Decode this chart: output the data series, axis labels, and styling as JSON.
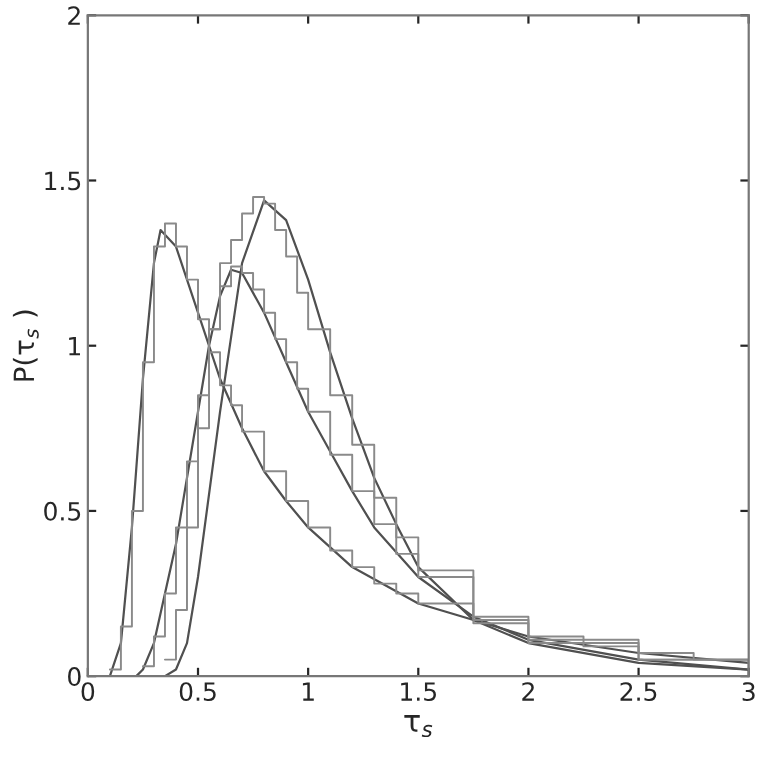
{
  "chart_data": {
    "type": "line",
    "xlabel": "τ$_{s}$",
    "ylabel": "P(τ$_{s}$ )",
    "xlim": [
      0,
      3
    ],
    "ylim": [
      0,
      2
    ],
    "xticks": [
      0,
      0.5,
      1,
      1.5,
      2,
      2.5,
      3
    ],
    "yticks": [
      0,
      0.5,
      1,
      1.5,
      2
    ],
    "grid": false,
    "legend": false,
    "series": [
      {
        "color": "#505050",
        "x": [
          0.1,
          0.15,
          0.2,
          0.25,
          0.3,
          0.33,
          0.4,
          0.5,
          0.6,
          0.7,
          0.8,
          0.9,
          1.0,
          1.2,
          1.5,
          2.0,
          2.5,
          3.0
        ],
        "values": [
          0,
          0.1,
          0.45,
          0.9,
          1.25,
          1.35,
          1.3,
          1.1,
          0.9,
          0.75,
          0.62,
          0.53,
          0.45,
          0.33,
          0.22,
          0.12,
          0.07,
          0.04
        ]
      },
      {
        "color": "#505050",
        "x": [
          0.22,
          0.25,
          0.3,
          0.4,
          0.5,
          0.55,
          0.6,
          0.65,
          0.7,
          0.8,
          0.9,
          1.0,
          1.1,
          1.2,
          1.3,
          1.5,
          1.75,
          2.0,
          2.5,
          3.0
        ],
        "values": [
          0,
          0.02,
          0.1,
          0.4,
          0.8,
          1.0,
          1.15,
          1.23,
          1.22,
          1.1,
          0.95,
          0.8,
          0.68,
          0.56,
          0.45,
          0.3,
          0.18,
          0.11,
          0.05,
          0.02
        ]
      },
      {
        "color": "#505050",
        "x": [
          0.35,
          0.4,
          0.45,
          0.5,
          0.6,
          0.7,
          0.8,
          0.9,
          1.0,
          1.1,
          1.2,
          1.3,
          1.4,
          1.5,
          1.75,
          2.0,
          2.5,
          3.0
        ],
        "values": [
          0,
          0.02,
          0.1,
          0.3,
          0.8,
          1.25,
          1.44,
          1.38,
          1.2,
          0.98,
          0.78,
          0.6,
          0.46,
          0.33,
          0.17,
          0.1,
          0.04,
          0.02
        ]
      },
      {
        "type": "step",
        "color": "#8a8a8a",
        "x": [
          0.1,
          0.15,
          0.2,
          0.25,
          0.3,
          0.35,
          0.4,
          0.45,
          0.5,
          0.55,
          0.6,
          0.65,
          0.7,
          0.8,
          0.9,
          1.0,
          1.1,
          1.2,
          1.3,
          1.4,
          1.5,
          1.75,
          2.0,
          2.25,
          2.5,
          2.75,
          3.0
        ],
        "values": [
          0.02,
          0.15,
          0.5,
          0.95,
          1.3,
          1.37,
          1.3,
          1.2,
          1.08,
          0.98,
          0.88,
          0.82,
          0.74,
          0.62,
          0.53,
          0.45,
          0.38,
          0.33,
          0.28,
          0.25,
          0.22,
          0.16,
          0.12,
          0.09,
          0.07,
          0.05,
          0.04
        ]
      },
      {
        "type": "step",
        "color": "#8a8a8a",
        "x": [
          0.25,
          0.3,
          0.35,
          0.4,
          0.45,
          0.5,
          0.55,
          0.6,
          0.65,
          0.7,
          0.75,
          0.8,
          0.85,
          0.9,
          0.95,
          1.0,
          1.1,
          1.2,
          1.3,
          1.4,
          1.5,
          1.75,
          2.0,
          2.5,
          3.0
        ],
        "values": [
          0.03,
          0.12,
          0.25,
          0.45,
          0.65,
          0.85,
          1.05,
          1.18,
          1.24,
          1.22,
          1.17,
          1.1,
          1.02,
          0.95,
          0.87,
          0.8,
          0.67,
          0.56,
          0.46,
          0.37,
          0.3,
          0.18,
          0.11,
          0.05,
          0.02
        ]
      },
      {
        "type": "step",
        "color": "#8a8a8a",
        "x": [
          0.35,
          0.4,
          0.45,
          0.5,
          0.55,
          0.6,
          0.65,
          0.7,
          0.75,
          0.8,
          0.85,
          0.9,
          0.95,
          1.0,
          1.1,
          1.2,
          1.3,
          1.4,
          1.5,
          1.75,
          2.0,
          2.5,
          3.0
        ],
        "values": [
          0.05,
          0.2,
          0.45,
          0.75,
          1.05,
          1.25,
          1.32,
          1.4,
          1.45,
          1.43,
          1.35,
          1.27,
          1.16,
          1.05,
          0.85,
          0.7,
          0.54,
          0.42,
          0.32,
          0.17,
          0.1,
          0.05,
          0.02
        ]
      }
    ]
  }
}
